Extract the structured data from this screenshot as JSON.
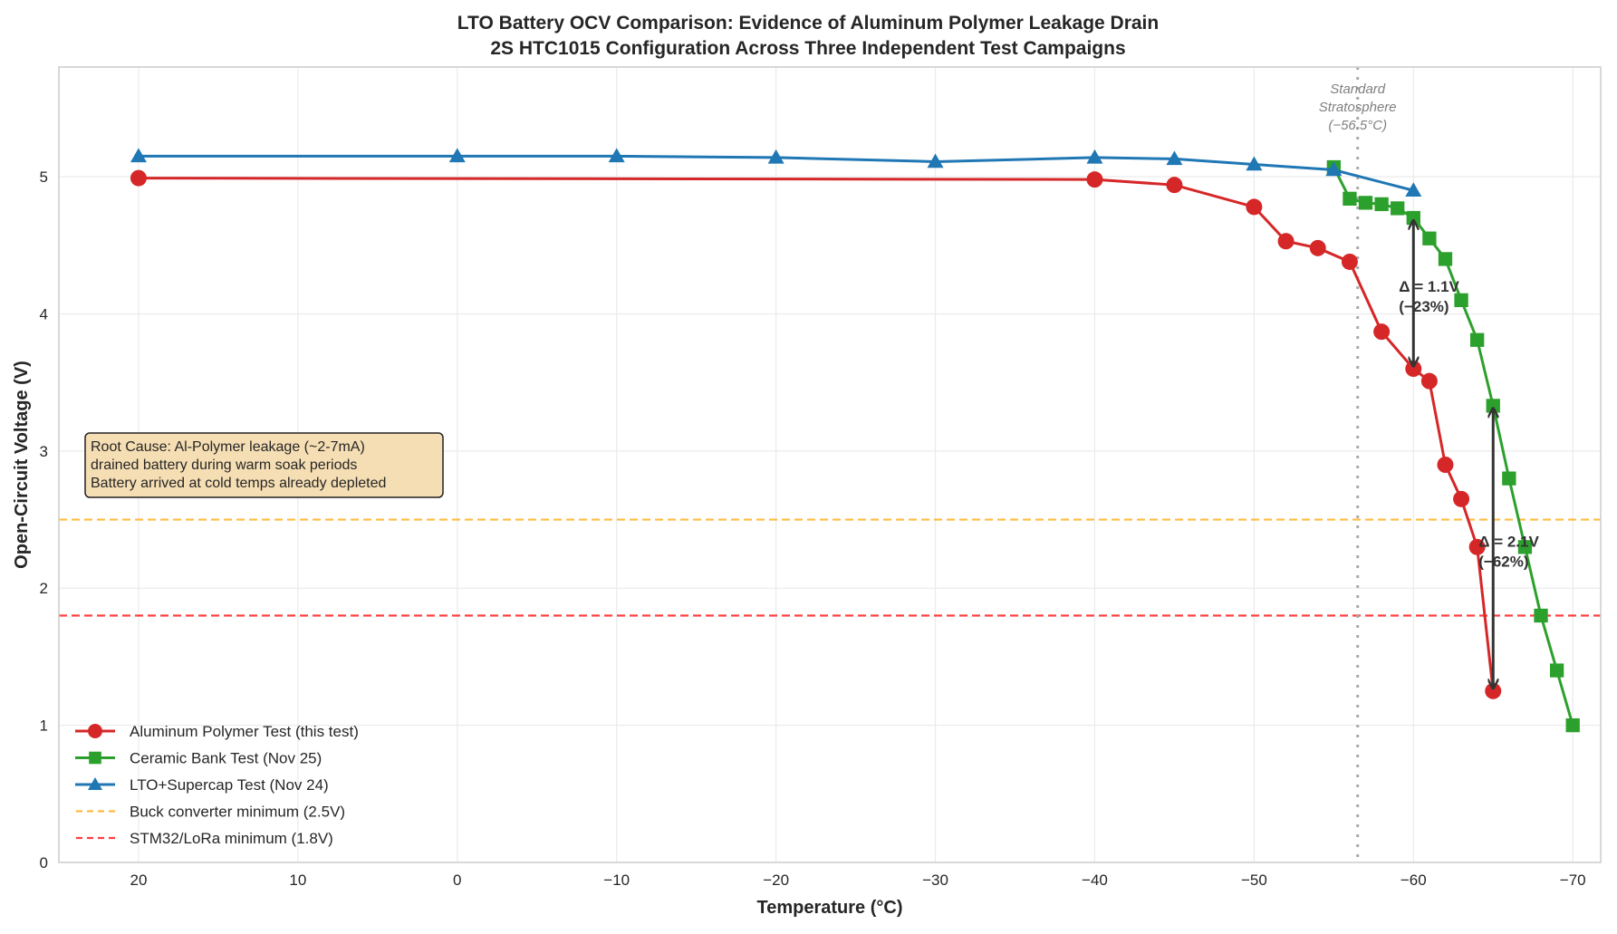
{
  "chart_data": {
    "type": "line",
    "title": "LTO Battery OCV Comparison: Evidence of Aluminum Polymer Leakage Drain",
    "subtitle": "2S HTC1015 Configuration Across Three Independent Test Campaigns",
    "xlabel": "Temperature (°C)",
    "ylabel": "Open-Circuit Voltage (V)",
    "xlim": [
      25,
      -71.75
    ],
    "x_reversed": true,
    "ylim": [
      0,
      5.8
    ],
    "xticks": [
      20,
      10,
      0,
      -10,
      -20,
      -30,
      -40,
      -50,
      -60,
      -70
    ],
    "xtick_labels": [
      "20",
      "10",
      "0",
      "−10",
      "−20",
      "−30",
      "−40",
      "−50",
      "−60",
      "−70"
    ],
    "yticks": [
      0,
      1,
      2,
      3,
      4,
      5
    ],
    "ytick_labels": [
      "0",
      "1",
      "2",
      "3",
      "4",
      "5"
    ],
    "grid": true,
    "legend_position": "lower-left",
    "series": [
      {
        "name": "Aluminum Polymer Test (this test)",
        "color": "#d62728",
        "marker": "circle",
        "x": [
          20,
          -40,
          -45,
          -50,
          -52,
          -54,
          -56,
          -58,
          -60,
          -61,
          -62,
          -63,
          -64,
          -65
        ],
        "y": [
          4.99,
          4.98,
          4.94,
          4.78,
          4.53,
          4.48,
          4.38,
          3.87,
          3.6,
          3.51,
          2.9,
          2.65,
          2.3,
          1.25
        ]
      },
      {
        "name": "Ceramic Bank Test (Nov 25)",
        "color": "#2ca02c",
        "marker": "square",
        "x": [
          -55,
          -56,
          -57,
          -58,
          -59,
          -60,
          -61,
          -62,
          -63,
          -64,
          -65,
          -66,
          -67,
          -68,
          -69,
          -70
        ],
        "y": [
          5.07,
          4.84,
          4.81,
          4.8,
          4.77,
          4.7,
          4.55,
          4.4,
          4.1,
          3.81,
          3.33,
          2.8,
          2.3,
          1.8,
          1.4,
          1.0
        ]
      },
      {
        "name": "LTO+Supercap Test (Nov 24)",
        "color": "#1f77b4",
        "marker": "triangle",
        "x": [
          20,
          0,
          -10,
          -20,
          -30,
          -40,
          -45,
          -50,
          -55,
          -60
        ],
        "y": [
          5.15,
          5.15,
          5.15,
          5.14,
          5.11,
          5.14,
          5.13,
          5.09,
          5.05,
          4.9
        ]
      }
    ],
    "hlines": [
      {
        "name": "Buck converter minimum (2.5V)",
        "y": 2.5,
        "color": "#ffa500"
      },
      {
        "name": "STM32/LoRa minimum (1.8V)",
        "y": 1.8,
        "color": "#ff0000"
      }
    ],
    "vline": {
      "x": -56.5,
      "color": "#aaaaaa",
      "label_lines": [
        "Standard",
        "Stratosphere",
        "(−56.5°C)"
      ]
    },
    "annotations": [
      {
        "x": -60,
        "y_from": 4.7,
        "y_to": 3.6,
        "lines": [
          "Δ = 1.1V",
          "(−23%)"
        ]
      },
      {
        "x": -65,
        "y_from": 3.33,
        "y_to": 1.25,
        "lines": [
          "Δ = 2.1V",
          "(−62%)"
        ]
      }
    ],
    "textbox": {
      "lines": [
        "Root Cause: Al-Polymer leakage (~2-7mA)",
        "drained battery during warm soak periods",
        "Battery arrived at cold temps already depleted"
      ],
      "background": "#f5deb3"
    }
  }
}
